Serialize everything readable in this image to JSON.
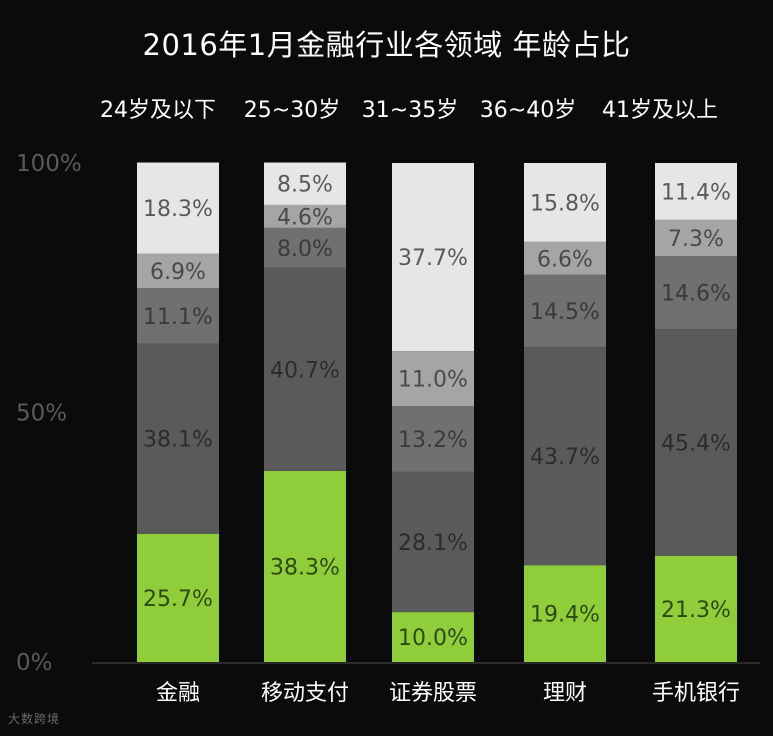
{
  "chart_data": {
    "type": "bar",
    "stacked": true,
    "title": "2016年1月金融行业各领域 年龄占比",
    "categories": [
      "金融",
      "移动支付",
      "证券股票",
      "理财",
      "手机银行"
    ],
    "ylim": [
      0,
      100
    ],
    "yticks": [
      "0%",
      "50%",
      "100%"
    ],
    "legend_position": "top",
    "series": [
      {
        "name": "24岁及以下",
        "color": "#8fce3a",
        "text_color": "#2f4a10",
        "values": [
          25.7,
          38.3,
          10.0,
          19.4,
          21.3
        ]
      },
      {
        "name": "25~30岁",
        "color": "#5a5a5a",
        "text_color": "#2c2c2c",
        "values": [
          38.1,
          40.7,
          28.1,
          43.7,
          45.4
        ]
      },
      {
        "name": "31~35岁",
        "color": "#707070",
        "text_color": "#3a3a3a",
        "values": [
          11.1,
          8.0,
          13.2,
          14.5,
          14.6
        ]
      },
      {
        "name": "36~40岁",
        "color": "#a5a5a5",
        "text_color": "#4a4a4a",
        "values": [
          6.9,
          4.6,
          11.0,
          6.6,
          7.3
        ]
      },
      {
        "name": "41岁及以上",
        "color": "#e6e6e6",
        "text_color": "#5a5a5a",
        "values": [
          18.3,
          8.5,
          37.7,
          15.8,
          11.4
        ]
      }
    ],
    "value_labels": [
      [
        "25.7%",
        "38.1%",
        "11.1%",
        "6.9%",
        "18.3%"
      ],
      [
        "38.3%",
        "40.7%",
        "8.0%",
        "4.6%",
        "8.5%"
      ],
      [
        "10.0%",
        "28.1%",
        "13.2%",
        "11.0%",
        "37.7%"
      ],
      [
        "19.4%",
        "43.7%",
        "14.5%",
        "6.6%",
        "15.8%"
      ],
      [
        "21.3%",
        "45.4%",
        "14.6%",
        "7.3%",
        "11.4%"
      ]
    ]
  },
  "watermark": "大数跨境"
}
